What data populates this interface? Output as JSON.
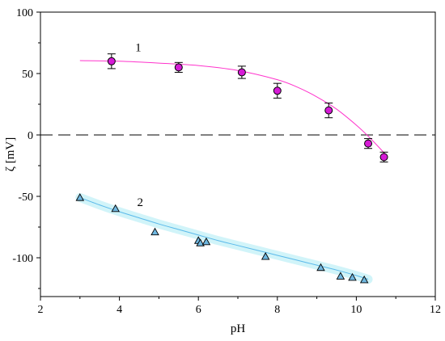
{
  "chart_data": {
    "type": "scatter",
    "xlabel": "pH",
    "ylabel": "ζ [mV]",
    "xlim": [
      2,
      12
    ],
    "ylim": [
      -130,
      100
    ],
    "x_ticks": [
      "2",
      "4",
      "6",
      "8",
      "10",
      "12"
    ],
    "y_ticks": [
      "100",
      "50",
      "0",
      "-50",
      "-100"
    ],
    "x_tick_values": [
      2,
      4,
      6,
      8,
      10,
      12
    ],
    "y_tick_values": [
      100,
      50,
      0,
      -50,
      -100
    ],
    "reference_line": {
      "y": 0,
      "style": "dashed",
      "color": "#000000"
    },
    "series": [
      {
        "label": "1",
        "marker": "circle",
        "marker_color": "#d61bd6",
        "line_color": "#ff33cc",
        "points": [
          {
            "x": 3.8,
            "y": 60,
            "err": 6
          },
          {
            "x": 5.5,
            "y": 55,
            "err": 4
          },
          {
            "x": 7.1,
            "y": 51,
            "err": 5
          },
          {
            "x": 8.0,
            "y": 36,
            "err": 6
          },
          {
            "x": 9.3,
            "y": 20,
            "err": 6
          },
          {
            "x": 10.3,
            "y": -7,
            "err": 4
          },
          {
            "x": 10.7,
            "y": -18,
            "err": 4
          }
        ],
        "fit": [
          [
            3.0,
            60.5
          ],
          [
            4.0,
            60.0
          ],
          [
            5.0,
            58.5
          ],
          [
            6.0,
            56.5
          ],
          [
            7.0,
            52.5
          ],
          [
            8.0,
            45.0
          ],
          [
            8.5,
            39.0
          ],
          [
            9.0,
            31.0
          ],
          [
            9.5,
            21.0
          ],
          [
            10.0,
            8.0
          ],
          [
            10.3,
            -1.0
          ],
          [
            10.6,
            -11.0
          ],
          [
            10.8,
            -18.0
          ]
        ]
      },
      {
        "label": "2",
        "marker": "triangle",
        "marker_color": "#6fb7e0",
        "line_color": "#5ab9ea",
        "band_color": "#c9f2f8",
        "points": [
          {
            "x": 3.0,
            "y": -51
          },
          {
            "x": 3.9,
            "y": -60
          },
          {
            "x": 4.9,
            "y": -79
          },
          {
            "x": 6.0,
            "y": -86
          },
          {
            "x": 6.05,
            "y": -88
          },
          {
            "x": 6.2,
            "y": -87
          },
          {
            "x": 7.7,
            "y": -99
          },
          {
            "x": 9.1,
            "y": -108
          },
          {
            "x": 9.6,
            "y": -115
          },
          {
            "x": 9.9,
            "y": -116
          },
          {
            "x": 10.2,
            "y": -118
          }
        ],
        "fit": [
          [
            3.0,
            -51
          ],
          [
            3.5,
            -57
          ],
          [
            4.0,
            -62.5
          ],
          [
            4.5,
            -67.5
          ],
          [
            5.0,
            -72.5
          ],
          [
            5.5,
            -77
          ],
          [
            6.0,
            -81.5
          ],
          [
            6.5,
            -86
          ],
          [
            7.0,
            -90
          ],
          [
            7.5,
            -94
          ],
          [
            8.0,
            -98
          ],
          [
            8.5,
            -102
          ],
          [
            9.0,
            -106
          ],
          [
            9.5,
            -110
          ],
          [
            10.0,
            -114.5
          ],
          [
            10.3,
            -117.5
          ]
        ]
      }
    ]
  }
}
